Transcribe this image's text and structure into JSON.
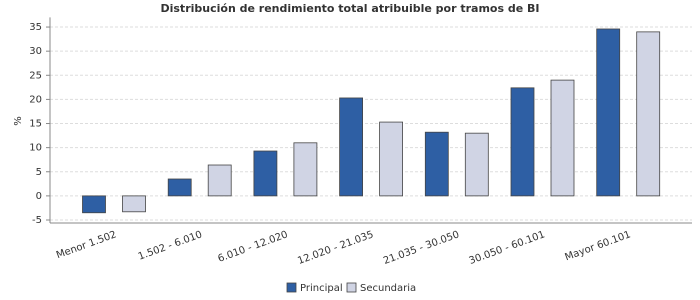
{
  "chart_data": {
    "type": "bar",
    "title": "Distribución de rendimiento total atribuible por tramos de BI",
    "y_label": "%",
    "categories": [
      "Menor 1.502",
      "1.502 - 6.010",
      "6.010 - 12.020",
      "12.020 - 21.035",
      "21.035 - 30.050",
      "30.050 - 60.101",
      "Mayor 60.101"
    ],
    "series": [
      {
        "name": "Principal",
        "color": "#2e5fa4",
        "values": [
          -3.5,
          3.5,
          9.3,
          20.3,
          13.2,
          22.4,
          34.6
        ]
      },
      {
        "name": "Secundaria",
        "color": "#d0d4e4",
        "values": [
          -3.3,
          6.4,
          11.0,
          15.3,
          13.0,
          24.0,
          34.0
        ]
      }
    ],
    "ylim": [
      -5,
      37
    ],
    "yticks": [
      -5,
      0,
      5,
      10,
      15,
      20,
      25,
      30,
      35
    ],
    "grid": true
  }
}
